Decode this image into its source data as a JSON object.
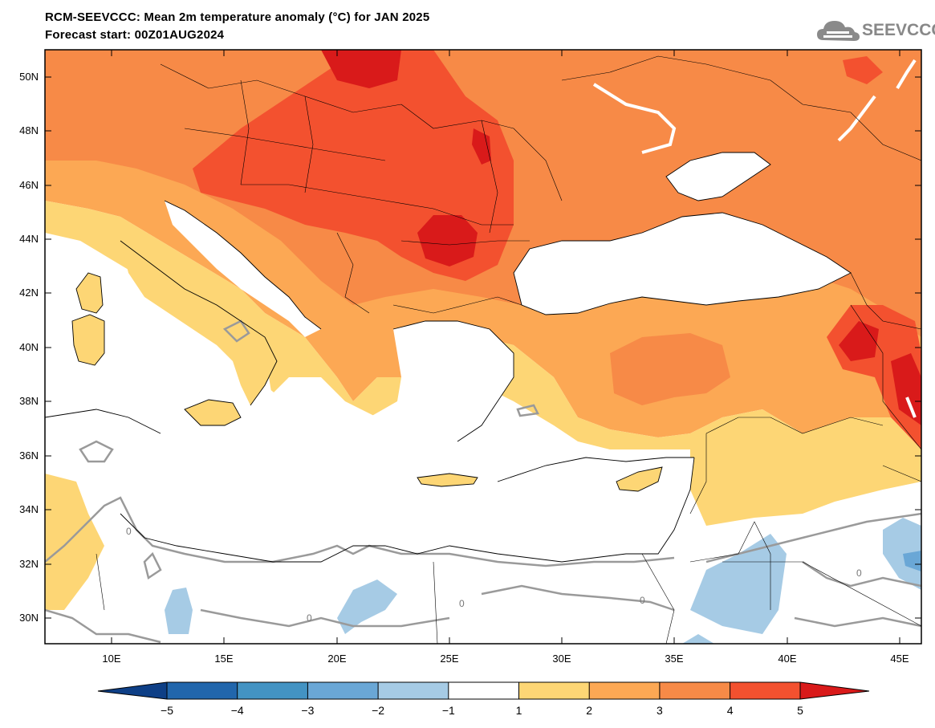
{
  "header": {
    "title_line1": "RCM-SEEVCCC: Mean 2m temperature anomaly (°C) for JAN 2025",
    "title_line2": "Forecast start: 00Z01AUG2024"
  },
  "logo": {
    "text": "SEEVCCC",
    "icon": "cloud-icon"
  },
  "map": {
    "lat_labels": [
      "50N",
      "48N",
      "46N",
      "44N",
      "42N",
      "40N",
      "38N",
      "36N",
      "34N",
      "32N",
      "30N"
    ],
    "lon_labels": [
      "10E",
      "15E",
      "20E",
      "25E",
      "30E",
      "35E",
      "40E",
      "45E"
    ],
    "contour_label": "0"
  },
  "colorbar": {
    "tick_labels": [
      "-5",
      "-4",
      "-3",
      "-2",
      "-1",
      "1",
      "2",
      "3",
      "4",
      "5"
    ],
    "colors": [
      "#0e3f86",
      "#2166ac",
      "#4393c3",
      "#6aa7d6",
      "#a6cbe5",
      "#ffffff",
      "#fdd675",
      "#fca854",
      "#f78a47",
      "#f3512f",
      "#d91a1a"
    ],
    "palette": {
      "red_dark": "#d91a1a",
      "red": "#f3512f",
      "orange_dark": "#f78a47",
      "orange": "#fca854",
      "yellow": "#fdd675",
      "blue_light": "#a6cbe5",
      "blue": "#6aa7d6",
      "contour_gray": "#9a9a9a"
    }
  }
}
